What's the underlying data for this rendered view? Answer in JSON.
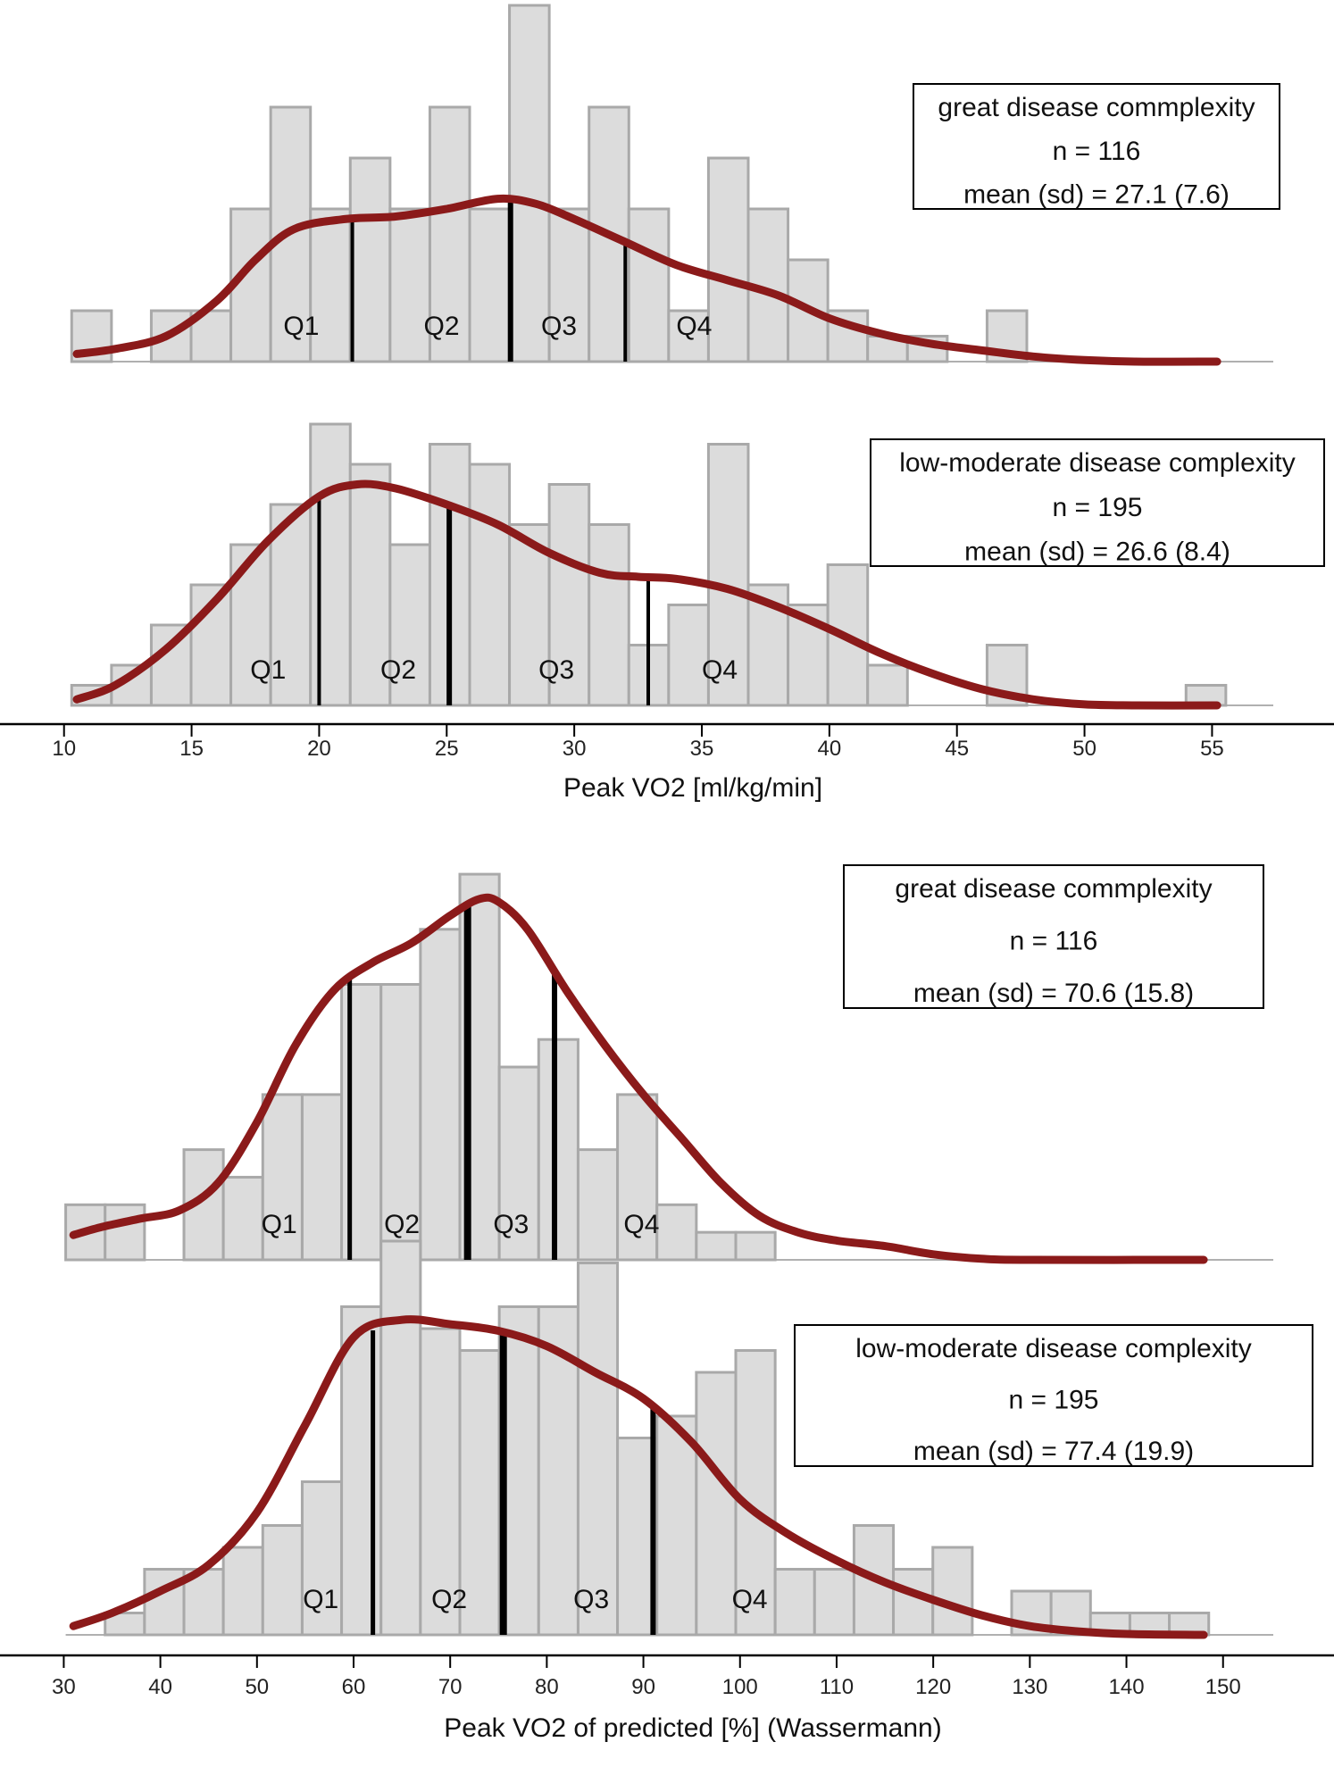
{
  "colors": {
    "bar_fill": "#dcdcdc",
    "bar_stroke": "#a9a9a9",
    "density": "#8b1a1a",
    "quartile": "#000000"
  },
  "chart_data": [
    {
      "type": "bar",
      "axis": "top",
      "xlabel": "Peak VO2 [ml/kg/min]",
      "xlim": [
        9.8,
        57.4
      ],
      "xticks": [
        10,
        15,
        20,
        25,
        30,
        35,
        40,
        45,
        50,
        55
      ],
      "panels": [
        {
          "group": "great disease commplexity",
          "legend": [
            "great disease commplexity",
            "n = 116",
            "mean (sd) = 27.1 (7.6)"
          ],
          "bin_start": 10.3,
          "bin_width": 1.56,
          "counts": [
            1,
            0,
            1,
            1,
            3,
            5,
            3,
            4,
            3,
            5,
            3,
            7,
            3,
            5,
            3,
            1,
            4,
            3,
            2,
            1,
            0.5,
            0.5,
            0,
            1,
            0,
            0,
            0,
            0,
            0
          ],
          "ymax": 7,
          "quartiles": [
            21.3,
            27.5,
            32.0
          ],
          "quartile_labels": [
            "Q1",
            "Q2",
            "Q3",
            "Q4"
          ],
          "quartile_label_x": [
            19.3,
            24.8,
            29.4,
            34.7
          ],
          "density": [
            [
              10.5,
              0.15
            ],
            [
              12,
              0.25
            ],
            [
              14,
              0.5
            ],
            [
              16,
              1.2
            ],
            [
              17.5,
              2.0
            ],
            [
              19,
              2.6
            ],
            [
              21,
              2.8
            ],
            [
              23,
              2.85
            ],
            [
              25,
              3.0
            ],
            [
              27,
              3.2
            ],
            [
              28.5,
              3.1
            ],
            [
              30,
              2.8
            ],
            [
              32,
              2.35
            ],
            [
              34,
              1.9
            ],
            [
              36,
              1.6
            ],
            [
              38,
              1.3
            ],
            [
              40,
              0.85
            ],
            [
              42,
              0.55
            ],
            [
              44,
              0.35
            ],
            [
              46,
              0.22
            ],
            [
              48,
              0.1
            ],
            [
              50,
              0.03
            ],
            [
              52,
              0
            ],
            [
              55.2,
              0
            ]
          ]
        },
        {
          "group": "low-moderate disease complexity",
          "legend": [
            "low-moderate disease complexity",
            "n = 195",
            "mean (sd) = 26.6 (8.4)"
          ],
          "bin_start": 10.3,
          "bin_width": 1.56,
          "counts": [
            1,
            2,
            4,
            6,
            8,
            10,
            14,
            12,
            8,
            13,
            12,
            9,
            11,
            9,
            3,
            5,
            13,
            6,
            5,
            7,
            2,
            0,
            0,
            3,
            0,
            0,
            0,
            0,
            1
          ],
          "ymax": 14,
          "quartiles": [
            20.0,
            25.1,
            32.9
          ],
          "quartile_labels": [
            "Q1",
            "Q2",
            "Q3",
            "Q4"
          ],
          "quartile_label_x": [
            18.0,
            23.1,
            29.3,
            35.7
          ],
          "density": [
            [
              10.5,
              0.3
            ],
            [
              12,
              1.0
            ],
            [
              14,
              2.8
            ],
            [
              16,
              5.3
            ],
            [
              18,
              8.2
            ],
            [
              20,
              10.4
            ],
            [
              21.5,
              11.0
            ],
            [
              23,
              10.8
            ],
            [
              25,
              10.0
            ],
            [
              27,
              9.0
            ],
            [
              29,
              7.6
            ],
            [
              31,
              6.6
            ],
            [
              32.5,
              6.4
            ],
            [
              34,
              6.3
            ],
            [
              36,
              5.8
            ],
            [
              38,
              4.9
            ],
            [
              40,
              3.8
            ],
            [
              42,
              2.6
            ],
            [
              44,
              1.6
            ],
            [
              46,
              0.8
            ],
            [
              48,
              0.3
            ],
            [
              50,
              0.05
            ],
            [
              52,
              0
            ],
            [
              55.2,
              0
            ]
          ]
        }
      ]
    },
    {
      "type": "bar",
      "axis": "bottom",
      "xlabel": "Peak VO2 of predicted [%] (Wassermann)",
      "xlim": [
        29.5,
        155.2
      ],
      "xticks": [
        30,
        40,
        50,
        60,
        70,
        80,
        90,
        100,
        110,
        120,
        130,
        140,
        150
      ],
      "panels": [
        {
          "group": "great disease commplexity",
          "legend": [
            "great disease commplexity",
            "n = 116",
            "mean (sd) = 70.6 (15.8)"
          ],
          "bin_start": 30.2,
          "bin_width": 4.08,
          "counts": [
            1,
            1,
            0,
            2,
            1.5,
            3,
            3,
            5,
            5,
            6,
            7,
            3.5,
            4,
            2,
            3,
            1,
            0.5,
            0.5,
            0,
            0,
            0,
            0,
            0,
            0,
            0,
            0,
            0,
            0,
            0
          ],
          "ymax": 7,
          "quartiles": [
            59.6,
            71.8,
            80.8
          ],
          "quartile_labels": [
            "Q1",
            "Q2",
            "Q3",
            "Q4"
          ],
          "quartile_label_x": [
            52.3,
            65.0,
            76.3,
            89.8
          ],
          "density": [
            [
              31,
              0.45
            ],
            [
              34,
              0.6
            ],
            [
              38,
              0.75
            ],
            [
              42,
              0.9
            ],
            [
              46,
              1.4
            ],
            [
              50,
              2.5
            ],
            [
              54,
              3.9
            ],
            [
              58,
              4.9
            ],
            [
              62,
              5.4
            ],
            [
              66,
              5.75
            ],
            [
              70,
              6.25
            ],
            [
              73,
              6.55
            ],
            [
              75,
              6.5
            ],
            [
              78,
              6.0
            ],
            [
              82,
              4.9
            ],
            [
              86,
              3.9
            ],
            [
              90,
              3.0
            ],
            [
              94,
              2.2
            ],
            [
              98,
              1.4
            ],
            [
              102,
              0.8
            ],
            [
              106,
              0.5
            ],
            [
              110,
              0.35
            ],
            [
              115,
              0.25
            ],
            [
              120,
              0.1
            ],
            [
              125,
              0.02
            ],
            [
              130,
              0
            ],
            [
              148,
              0
            ]
          ]
        },
        {
          "group": "low-moderate disease complexity",
          "legend": [
            "low-moderate disease complexity",
            "n = 195",
            "mean (sd) = 77.4 (19.9)"
          ],
          "bin_start": 30.2,
          "bin_width": 4.08,
          "counts": [
            0,
            0.5,
            1.5,
            1.5,
            2,
            2.5,
            3.5,
            7.5,
            9,
            7,
            6.5,
            7.5,
            7.5,
            8.5,
            4.5,
            5,
            6,
            6.5,
            1.5,
            1.5,
            2.5,
            1.5,
            2,
            0,
            1,
            1,
            0.5,
            0.5,
            0.5
          ],
          "ymax": 9,
          "quartiles": [
            62.0,
            75.5,
            91.0
          ],
          "quartile_labels": [
            "Q1",
            "Q2",
            "Q3",
            "Q4"
          ],
          "quartile_label_x": [
            56.6,
            69.9,
            84.6,
            101.0
          ],
          "density": [
            [
              31,
              0.2
            ],
            [
              35,
              0.5
            ],
            [
              40,
              1.0
            ],
            [
              45,
              1.6
            ],
            [
              50,
              2.8
            ],
            [
              55,
              4.8
            ],
            [
              60,
              6.8
            ],
            [
              65,
              7.2
            ],
            [
              70,
              7.1
            ],
            [
              75,
              6.95
            ],
            [
              80,
              6.6
            ],
            [
              85,
              6.0
            ],
            [
              90,
              5.4
            ],
            [
              95,
              4.4
            ],
            [
              100,
              3.1
            ],
            [
              105,
              2.3
            ],
            [
              110,
              1.7
            ],
            [
              115,
              1.2
            ],
            [
              120,
              0.8
            ],
            [
              125,
              0.45
            ],
            [
              130,
              0.2
            ],
            [
              135,
              0.08
            ],
            [
              140,
              0.02
            ],
            [
              148,
              0
            ]
          ]
        }
      ]
    }
  ]
}
